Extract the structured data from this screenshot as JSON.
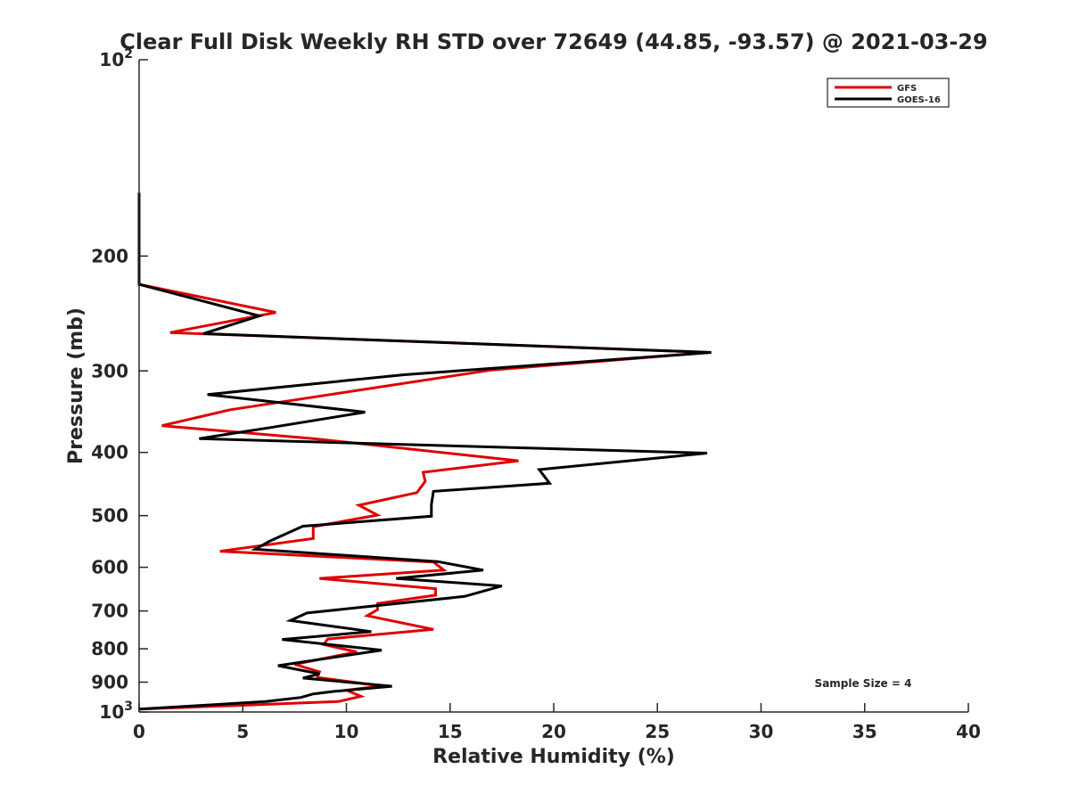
{
  "chart_data": {
    "type": "line",
    "title": "Clear Full Disk Weekly RH STD over 72649 (44.85, -93.57) @ 2021-03-29",
    "xlabel": "Relative Humidity (%)",
    "ylabel": "Pressure (mb)",
    "xlim": [
      0,
      40
    ],
    "ylim": [
      100,
      1000
    ],
    "yscale": "log",
    "y_reversed": true,
    "x_ticks": [
      "0",
      "5",
      "10",
      "15",
      "20",
      "25",
      "30",
      "35",
      "40"
    ],
    "y_ticks": [
      {
        "value": 100,
        "label": "10",
        "sup": "2"
      },
      {
        "value": 200,
        "label": "200",
        "sup": ""
      },
      {
        "value": 300,
        "label": "300",
        "sup": ""
      },
      {
        "value": 400,
        "label": "400",
        "sup": ""
      },
      {
        "value": 500,
        "label": "500",
        "sup": ""
      },
      {
        "value": 600,
        "label": "600",
        "sup": ""
      },
      {
        "value": 700,
        "label": "700",
        "sup": ""
      },
      {
        "value": 800,
        "label": "800",
        "sup": ""
      },
      {
        "value": 900,
        "label": "900",
        "sup": ""
      },
      {
        "value": 1000,
        "label": "10",
        "sup": "3"
      }
    ],
    "legend_position": "top-right",
    "annotation": "Sample Size = 4",
    "series": [
      {
        "name": "GFS",
        "color": "#e00000",
        "points": [
          [
            0,
            160
          ],
          [
            0,
            221
          ],
          [
            6.6,
            244
          ],
          [
            1.5,
            262
          ],
          [
            27.5,
            281
          ],
          [
            17,
            299
          ],
          [
            4.4,
            344
          ],
          [
            1.1,
            364
          ],
          [
            8.4,
            381
          ],
          [
            18.3,
            412
          ],
          [
            13.7,
            429
          ],
          [
            13.8,
            443
          ],
          [
            13.4,
            461
          ],
          [
            10.6,
            482
          ],
          [
            11.5,
            499
          ],
          [
            8.4,
            520
          ],
          [
            8.4,
            542
          ],
          [
            3.9,
            567
          ],
          [
            14.2,
            589
          ],
          [
            14.7,
            606
          ],
          [
            8.7,
            624
          ],
          [
            14.3,
            647
          ],
          [
            14.3,
            662
          ],
          [
            11.5,
            682
          ],
          [
            11.5,
            697
          ],
          [
            11.0,
            712
          ],
          [
            14.2,
            747
          ],
          [
            9.1,
            773
          ],
          [
            8.9,
            788
          ],
          [
            10.5,
            809
          ],
          [
            7.5,
            845
          ],
          [
            8.7,
            868
          ],
          [
            8.6,
            885
          ],
          [
            11.7,
            912
          ],
          [
            10.0,
            926
          ],
          [
            10.7,
            946
          ],
          [
            9.6,
            964
          ],
          [
            0,
            990
          ]
        ]
      },
      {
        "name": "GOES-16",
        "color": "#000000",
        "points": [
          [
            0,
            160
          ],
          [
            0,
            221
          ],
          [
            5.8,
            247
          ],
          [
            3.1,
            263
          ],
          [
            27.6,
            281
          ],
          [
            12.8,
            304
          ],
          [
            3.3,
            326
          ],
          [
            10.9,
            347
          ],
          [
            6.2,
            367
          ],
          [
            2.9,
            381
          ],
          [
            27.4,
            401
          ],
          [
            19.3,
            425
          ],
          [
            19.8,
            446
          ],
          [
            14.2,
            459
          ],
          [
            14.1,
            481
          ],
          [
            14.1,
            501
          ],
          [
            7.9,
            519
          ],
          [
            6.3,
            547
          ],
          [
            5.6,
            563
          ],
          [
            14.4,
            588
          ],
          [
            16.6,
            606
          ],
          [
            12.4,
            624
          ],
          [
            17.5,
            641
          ],
          [
            15.7,
            665
          ],
          [
            8.1,
            705
          ],
          [
            7.3,
            724
          ],
          [
            11.2,
            753
          ],
          [
            6.9,
            774
          ],
          [
            11.7,
            804
          ],
          [
            6.7,
            849
          ],
          [
            8.7,
            874
          ],
          [
            7.9,
            887
          ],
          [
            12.2,
            913
          ],
          [
            9.4,
            930
          ],
          [
            8.4,
            938
          ],
          [
            7.8,
            950
          ],
          [
            6.1,
            964
          ],
          [
            0,
            990
          ]
        ]
      }
    ]
  }
}
